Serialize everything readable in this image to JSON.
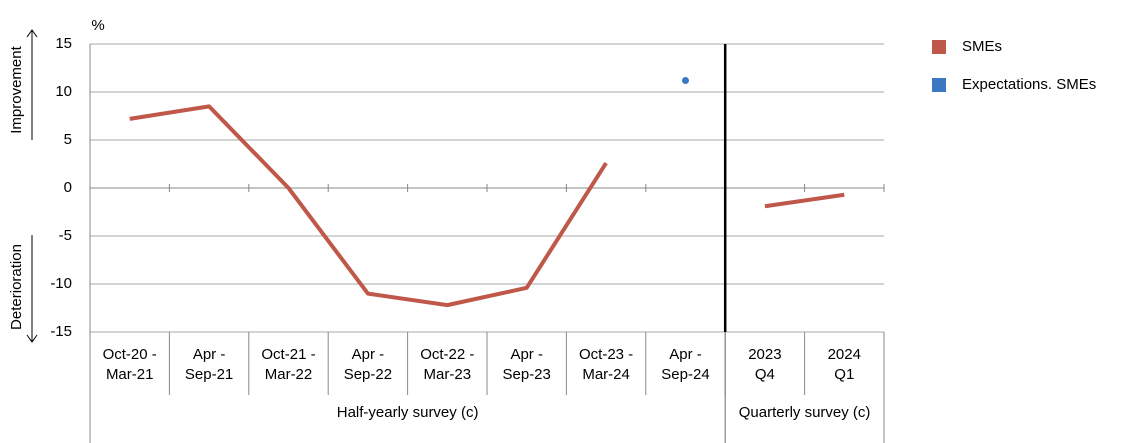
{
  "chart_data": {
    "type": "line",
    "y_unit": "%",
    "annotations": [
      "Improvement",
      "Deterioration"
    ],
    "categories": [
      "Oct-20 -\nMar-21",
      "Apr -\nSep-21",
      "Oct-21 -\nMar-22",
      "Apr -\nSep-22",
      "Oct-22 -\nMar-23",
      "Apr -\nSep-23",
      "Oct-23 -\nMar-24",
      "Apr -\nSep-24",
      "2023\nQ4",
      "2024\nQ1"
    ],
    "groups": [
      {
        "label": "Half-yearly survey (c)",
        "span": 8
      },
      {
        "label": "Quarterly survey\n(c)",
        "span": 2
      }
    ],
    "series": [
      {
        "name": "SMEs",
        "color": "#c0584a",
        "values": [
          7.2,
          8.5,
          0,
          -11,
          -12.2,
          -10.4,
          2.6,
          null,
          -1.9,
          -0.7
        ]
      },
      {
        "name": "Expectations. SMEs",
        "color": "#3b78c2",
        "values": [
          null,
          null,
          null,
          null,
          null,
          null,
          null,
          11.2,
          null,
          null
        ]
      }
    ],
    "ylim": [
      -15,
      15
    ],
    "yticks": [
      -15,
      -10,
      -5,
      0,
      5,
      10,
      15
    ],
    "grid": true
  }
}
